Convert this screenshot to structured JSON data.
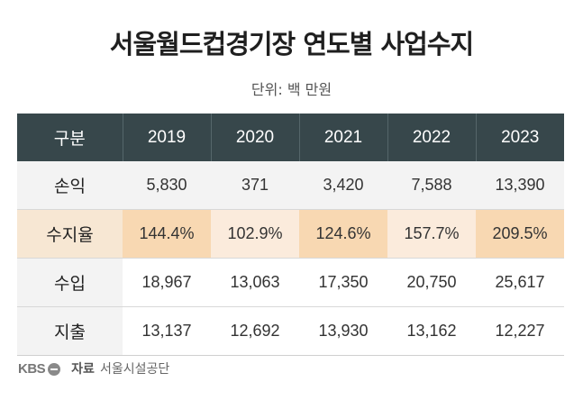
{
  "title": "서울월드컵경기장 연도별 사업수지",
  "unit": "단위: 백 만원",
  "table": {
    "header_label": "구분",
    "years": [
      "2019",
      "2020",
      "2021",
      "2022",
      "2023"
    ],
    "rows": [
      {
        "label": "손익",
        "values": [
          "5,830",
          "371",
          "3,420",
          "7,588",
          "13,390"
        ]
      },
      {
        "label": "수지율",
        "values": [
          "144.4%",
          "102.9%",
          "124.6%",
          "157.7%",
          "209.5%"
        ]
      },
      {
        "label": "수입",
        "values": [
          "18,967",
          "13,063",
          "17,350",
          "20,750",
          "25,617"
        ]
      },
      {
        "label": "지출",
        "values": [
          "13,137",
          "12,692",
          "13,930",
          "13,162",
          "12,227"
        ]
      }
    ]
  },
  "highlight_colors": {
    "strong": "#f8d8b2",
    "light": "#fbebdc"
  },
  "footer": {
    "logo": "KBS",
    "source_label": "자료",
    "source": "서울시설공단"
  }
}
